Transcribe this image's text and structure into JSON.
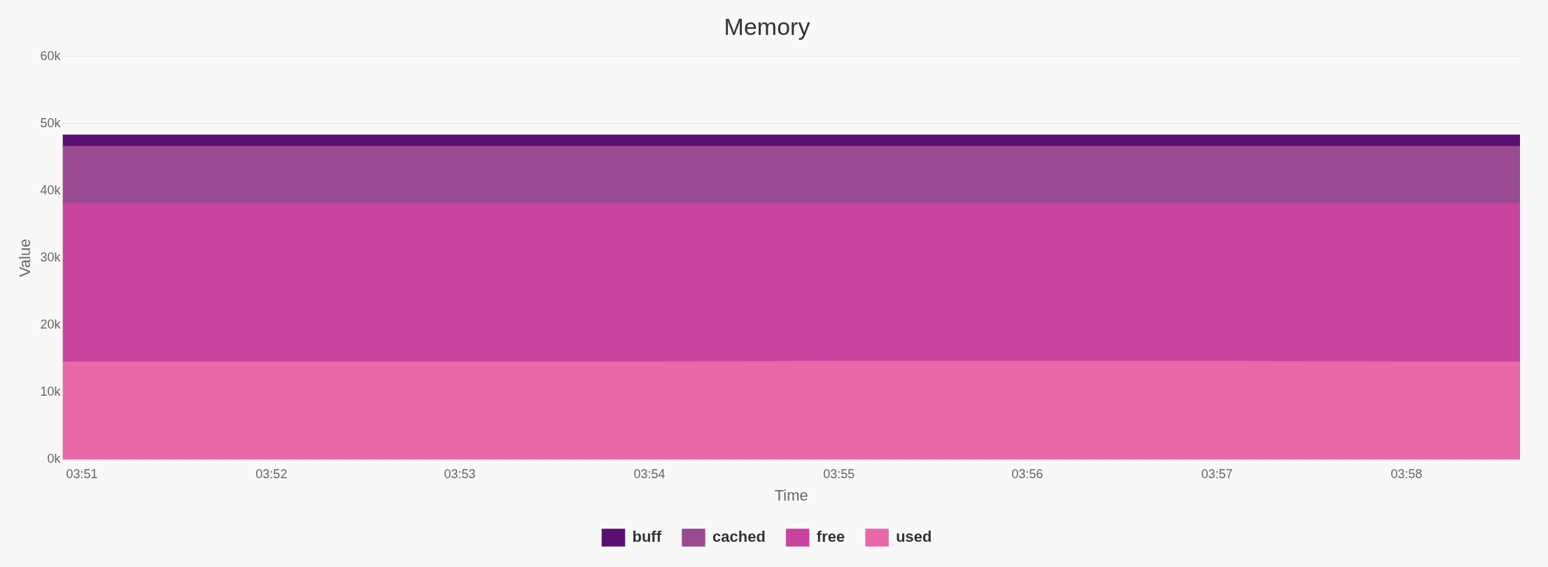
{
  "chart_data": {
    "type": "area",
    "title": "Memory",
    "xlabel": "Time",
    "ylabel": "Value",
    "stacked": true,
    "x": [
      3.8483,
      3.8667,
      3.8833,
      3.9,
      3.9167,
      3.9333,
      3.95,
      3.9667,
      3.9767
    ],
    "series": [
      {
        "name": "used",
        "color": "#e868a8",
        "values": [
          14500,
          14500,
          14500,
          14500,
          14600,
          14600,
          14600,
          14500,
          14500
        ]
      },
      {
        "name": "free",
        "color": "#c8449e",
        "values": [
          23600,
          23600,
          23600,
          23600,
          23500,
          23500,
          23500,
          23600,
          23600
        ]
      },
      {
        "name": "cached",
        "color": "#9a4a92",
        "values": [
          8500,
          8500,
          8500,
          8500,
          8500,
          8500,
          8500,
          8500,
          8500
        ]
      },
      {
        "name": "buff",
        "color": "#5a1070",
        "values": [
          1700,
          1700,
          1700,
          1700,
          1700,
          1700,
          1700,
          1700,
          1700
        ]
      }
    ],
    "xlim": [
      3.8483,
      3.9767
    ],
    "xticks": [
      {
        "value": 3.85,
        "label": "03:51"
      },
      {
        "value": 3.8667,
        "label": "03:52"
      },
      {
        "value": 3.8833,
        "label": "03:53"
      },
      {
        "value": 3.9,
        "label": "03:54"
      },
      {
        "value": 3.9167,
        "label": "03:55"
      },
      {
        "value": 3.9333,
        "label": "03:56"
      },
      {
        "value": 3.95,
        "label": "03:57"
      },
      {
        "value": 3.9667,
        "label": "03:58"
      }
    ],
    "ylim": [
      0,
      60000
    ],
    "yticks": [
      {
        "value": 0,
        "label": "0k"
      },
      {
        "value": 10000,
        "label": "10k"
      },
      {
        "value": 20000,
        "label": "20k"
      },
      {
        "value": 30000,
        "label": "30k"
      },
      {
        "value": 40000,
        "label": "40k"
      },
      {
        "value": 50000,
        "label": "50k"
      },
      {
        "value": 60000,
        "label": "60k"
      }
    ],
    "grid": "y",
    "legend": "bottom"
  }
}
